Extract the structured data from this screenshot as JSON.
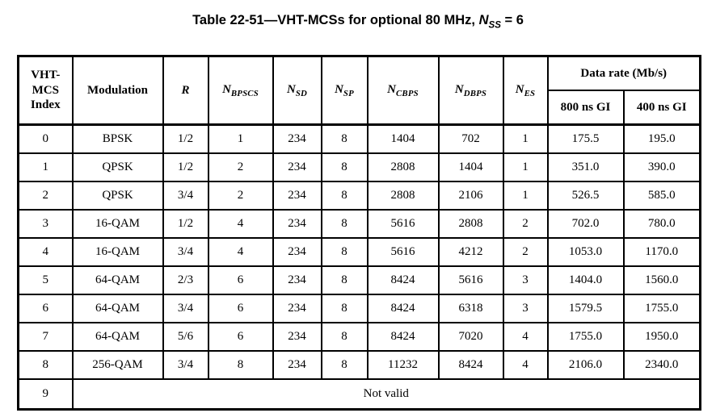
{
  "page": {
    "background": "#ffffff",
    "text_color": "#000000",
    "border_color": "#000000"
  },
  "title": {
    "prefix": "Table 22-51—VHT-MCSs for optional 80 MHz, ",
    "var_base": "N",
    "var_sub": "SS",
    "suffix": " = 6"
  },
  "table": {
    "headers": {
      "col_index": "VHT-\nMCS\nIndex",
      "col_modulation": "Modulation",
      "col_r": "R",
      "col_nbpscs": {
        "base": "N",
        "sub": "BPSCS"
      },
      "col_nsd": {
        "base": "N",
        "sub": "SD"
      },
      "col_nsp": {
        "base": "N",
        "sub": "SP"
      },
      "col_ncbps": {
        "base": "N",
        "sub": "CBPS"
      },
      "col_ndbps": {
        "base": "N",
        "sub": "DBPS"
      },
      "col_nes": {
        "base": "N",
        "sub": "ES"
      },
      "col_data_rate": "Data rate (Mb/s)",
      "col_gi_800": "800 ns GI",
      "col_gi_400": "400 ns GI"
    },
    "rows": [
      [
        "0",
        "BPSK",
        "1/2",
        "1",
        "234",
        "8",
        "1404",
        "702",
        "1",
        "175.5",
        "195.0"
      ],
      [
        "1",
        "QPSK",
        "1/2",
        "2",
        "234",
        "8",
        "2808",
        "1404",
        "1",
        "351.0",
        "390.0"
      ],
      [
        "2",
        "QPSK",
        "3/4",
        "2",
        "234",
        "8",
        "2808",
        "2106",
        "1",
        "526.5",
        "585.0"
      ],
      [
        "3",
        "16-QAM",
        "1/2",
        "4",
        "234",
        "8",
        "5616",
        "2808",
        "2",
        "702.0",
        "780.0"
      ],
      [
        "4",
        "16-QAM",
        "3/4",
        "4",
        "234",
        "8",
        "5616",
        "4212",
        "2",
        "1053.0",
        "1170.0"
      ],
      [
        "5",
        "64-QAM",
        "2/3",
        "6",
        "234",
        "8",
        "8424",
        "5616",
        "3",
        "1404.0",
        "1560.0"
      ],
      [
        "6",
        "64-QAM",
        "3/4",
        "6",
        "234",
        "8",
        "8424",
        "6318",
        "3",
        "1579.5",
        "1755.0"
      ],
      [
        "7",
        "64-QAM",
        "5/6",
        "6",
        "234",
        "8",
        "8424",
        "7020",
        "4",
        "1755.0",
        "1950.0"
      ],
      [
        "8",
        "256-QAM",
        "3/4",
        "8",
        "234",
        "8",
        "11232",
        "8424",
        "4",
        "2106.0",
        "2340.0"
      ]
    ],
    "not_valid": {
      "index": "9",
      "label": "Not valid"
    }
  }
}
